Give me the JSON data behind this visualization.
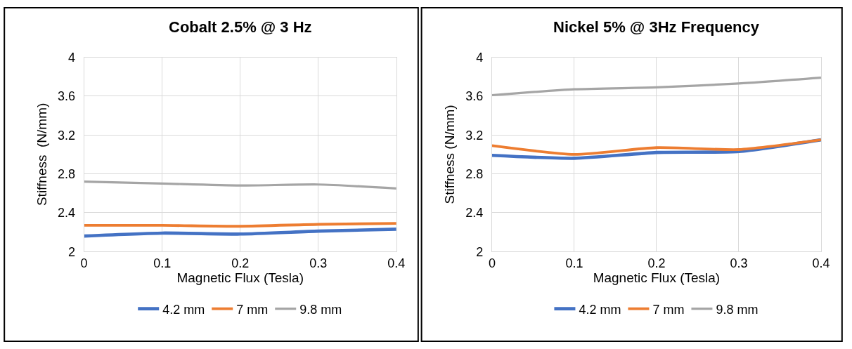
{
  "chart_data": [
    {
      "type": "line",
      "title": "Cobalt 2.5% @ 3 Hz",
      "xlabel": "Magnetic Flux (Tesla)",
      "ylabel": "Stiffness  (N/mm)",
      "x": [
        0,
        0.1,
        0.2,
        0.3,
        0.4
      ],
      "series": [
        {
          "name": "4.2 mm",
          "color": "#4472c4",
          "values": [
            2.16,
            2.19,
            2.18,
            2.21,
            2.23
          ]
        },
        {
          "name": "7 mm",
          "color": "#ed7d31",
          "values": [
            2.27,
            2.27,
            2.26,
            2.28,
            2.29
          ]
        },
        {
          "name": "9.8 mm",
          "color": "#a5a5a5",
          "values": [
            2.72,
            2.7,
            2.68,
            2.69,
            2.65
          ]
        }
      ],
      "xlim": [
        0,
        0.4
      ],
      "xticks": [
        0,
        0.1,
        0.2,
        0.3,
        0.4
      ],
      "ylim": [
        2,
        4
      ],
      "yticks": [
        2,
        2.4,
        2.8,
        3.2,
        3.6,
        4
      ],
      "grid": true,
      "legend": "bottom",
      "marker": "none"
    },
    {
      "type": "line",
      "title": "Nickel 5% @ 3Hz Frequency",
      "xlabel": "Magnetic Flux (Tesla)",
      "ylabel": "Stiffness (N/mm)",
      "x": [
        0,
        0.1,
        0.2,
        0.3,
        0.4
      ],
      "series": [
        {
          "name": "4.2 mm",
          "color": "#4472c4",
          "values": [
            2.99,
            2.96,
            3.02,
            3.03,
            3.15
          ]
        },
        {
          "name": "7 mm",
          "color": "#ed7d31",
          "values": [
            3.09,
            3.0,
            3.07,
            3.05,
            3.15
          ]
        },
        {
          "name": "9.8 mm",
          "color": "#a5a5a5",
          "values": [
            3.61,
            3.67,
            3.69,
            3.73,
            3.79
          ]
        }
      ],
      "xlim": [
        0,
        0.4
      ],
      "xticks": [
        0,
        0.1,
        0.2,
        0.3,
        0.4
      ],
      "ylim": [
        2,
        4
      ],
      "yticks": [
        2,
        2.4,
        2.8,
        3.2,
        3.6,
        4
      ],
      "grid": true,
      "legend": "bottom",
      "marker": "none"
    }
  ]
}
